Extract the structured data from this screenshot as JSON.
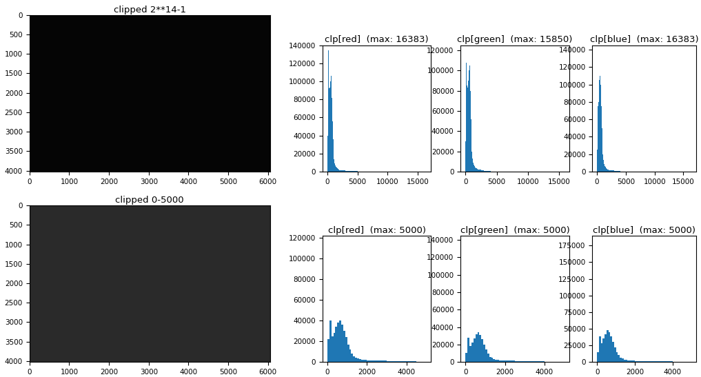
{
  "chart_data": [
    {
      "type": "image",
      "title": "clipped 2**14-1",
      "xlim": [
        0,
        6048
      ],
      "ylim": [
        4024,
        0
      ],
      "xticks": [
        0,
        1000,
        2000,
        3000,
        4000,
        5000,
        6000
      ],
      "yticks": [
        0,
        500,
        1000,
        1500,
        2000,
        2500,
        3000,
        3500,
        4000
      ]
    },
    {
      "type": "histogram",
      "title": "clp[red]  (max: 16383)",
      "color": "#1f77b4",
      "bins": [
        0,
        100,
        200,
        300,
        400,
        500,
        600,
        700,
        800,
        900,
        1000,
        1100,
        1200,
        1300,
        1400,
        1500,
        1600,
        1700,
        1800,
        1900,
        2000,
        2500,
        3000,
        4000,
        5000,
        6000,
        16383
      ],
      "counts": [
        40000,
        134000,
        95000,
        92000,
        93000,
        100000,
        106000,
        82000,
        56000,
        36000,
        22000,
        14000,
        9000,
        7000,
        5500,
        4500,
        3800,
        3200,
        2700,
        2300,
        1800,
        1300,
        800,
        300,
        60,
        20
      ],
      "xlim": [
        -800,
        17200
      ],
      "ylim": [
        0,
        140000
      ],
      "xticks": [
        0,
        5000,
        10000,
        15000
      ],
      "yticks": [
        0,
        20000,
        40000,
        60000,
        80000,
        100000,
        120000,
        140000
      ]
    },
    {
      "type": "histogram",
      "title": "clp[green]  (max: 15850)",
      "color": "#1f77b4",
      "bins": [
        0,
        100,
        200,
        300,
        400,
        500,
        600,
        700,
        800,
        900,
        1000,
        1100,
        1200,
        1300,
        1400,
        1500,
        1600,
        1700,
        1800,
        1900,
        2000,
        2500,
        3000,
        4000,
        5000,
        6000,
        15850
      ],
      "counts": [
        30000,
        108000,
        85000,
        83000,
        90000,
        100000,
        105000,
        80000,
        52000,
        32000,
        20000,
        13000,
        8500,
        6500,
        5200,
        4300,
        3600,
        3000,
        2500,
        2100,
        1700,
        1200,
        700,
        250,
        50,
        15
      ],
      "xlim": [
        -800,
        16650
      ],
      "ylim": [
        0,
        125000
      ],
      "xticks": [
        0,
        5000,
        10000,
        15000
      ],
      "yticks": [
        0,
        20000,
        40000,
        60000,
        80000,
        100000,
        120000
      ]
    },
    {
      "type": "histogram",
      "title": "clp[blue]  (max: 16383)",
      "color": "#1f77b4",
      "bins": [
        0,
        100,
        200,
        300,
        400,
        500,
        600,
        700,
        800,
        900,
        1000,
        1100,
        1200,
        1300,
        1400,
        1500,
        1600,
        1700,
        1800,
        1900,
        2000,
        2500,
        3000,
        4000,
        5000,
        6000,
        16383
      ],
      "counts": [
        25000,
        75000,
        80000,
        95000,
        105000,
        110000,
        100000,
        75000,
        50000,
        32000,
        20000,
        13000,
        8500,
        6500,
        5200,
        4300,
        3600,
        3000,
        2500,
        2100,
        1700,
        1200,
        700,
        250,
        50,
        15
      ],
      "xlim": [
        -800,
        17200
      ],
      "ylim": [
        0,
        145000
      ],
      "xticks": [
        0,
        5000,
        10000,
        15000
      ],
      "yticks": [
        0,
        20000,
        40000,
        60000,
        80000,
        100000,
        120000,
        140000
      ]
    },
    {
      "type": "image",
      "title": "clipped 0-5000",
      "xlim": [
        0,
        6048
      ],
      "ylim": [
        4024,
        0
      ],
      "xticks": [
        0,
        1000,
        2000,
        3000,
        4000,
        5000,
        6000
      ],
      "yticks": [
        0,
        500,
        1000,
        1500,
        2000,
        2500,
        3000,
        3500,
        4000
      ]
    },
    {
      "type": "histogram",
      "title": "clp[red]  (max: 5000)",
      "color": "#1f77b4",
      "bins": [
        0,
        100,
        200,
        300,
        400,
        500,
        600,
        700,
        800,
        900,
        1000,
        1100,
        1200,
        1300,
        1400,
        1500,
        1600,
        1700,
        1800,
        1900,
        2000,
        2500,
        3000,
        3500,
        4000,
        4500,
        5000
      ],
      "counts": [
        22000,
        40000,
        25000,
        28000,
        34000,
        38000,
        40000,
        36000,
        30000,
        24000,
        17000,
        12000,
        8000,
        5500,
        4000,
        3200,
        2700,
        2300,
        2000,
        1800,
        1500,
        1200,
        1000,
        800,
        500,
        300
      ],
      "xlim": [
        -250,
        5250
      ],
      "ylim": [
        0,
        122000
      ],
      "xticks": [
        0,
        2000,
        4000
      ],
      "yticks": [
        0,
        20000,
        40000,
        60000,
        80000,
        100000,
        120000
      ]
    },
    {
      "type": "histogram",
      "title": "clp[green]  (max: 5000)",
      "color": "#1f77b4",
      "bins": [
        0,
        100,
        200,
        300,
        400,
        500,
        600,
        700,
        800,
        900,
        1000,
        1100,
        1200,
        1300,
        1400,
        1500,
        1600,
        1700,
        1800,
        1900,
        2000,
        2500,
        3000,
        3500,
        4000,
        4500,
        5000
      ],
      "counts": [
        10000,
        28000,
        18000,
        22000,
        27000,
        32000,
        34000,
        31000,
        26000,
        20000,
        14000,
        9500,
        6000,
        4500,
        3500,
        2800,
        2400,
        2000,
        1800,
        1600,
        1300,
        1100,
        900,
        700,
        450,
        250
      ],
      "xlim": [
        -250,
        5250
      ],
      "ylim": [
        0,
        145000
      ],
      "xticks": [
        0,
        2000,
        4000
      ],
      "yticks": [
        0,
        20000,
        40000,
        60000,
        80000,
        100000,
        120000,
        140000
      ]
    },
    {
      "type": "histogram",
      "title": "clp[blue]  (max: 5000)",
      "color": "#1f77b4",
      "bins": [
        0,
        100,
        200,
        300,
        400,
        500,
        600,
        700,
        800,
        900,
        1000,
        1100,
        1200,
        1300,
        1400,
        1500,
        1600,
        1700,
        1800,
        1900,
        2000,
        2500,
        3000,
        3500,
        4000,
        4500,
        5000
      ],
      "counts": [
        15000,
        38000,
        28000,
        35000,
        42000,
        48000,
        45000,
        38000,
        30000,
        22000,
        15000,
        10000,
        6500,
        4800,
        3700,
        2900,
        2500,
        2100,
        1900,
        1700,
        1400,
        1100,
        900,
        700,
        450,
        250
      ],
      "xlim": [
        -250,
        5250
      ],
      "ylim": [
        0,
        190000
      ],
      "xticks": [
        0,
        2000,
        4000
      ],
      "yticks": [
        0,
        25000,
        50000,
        75000,
        100000,
        125000,
        150000,
        175000
      ]
    }
  ]
}
